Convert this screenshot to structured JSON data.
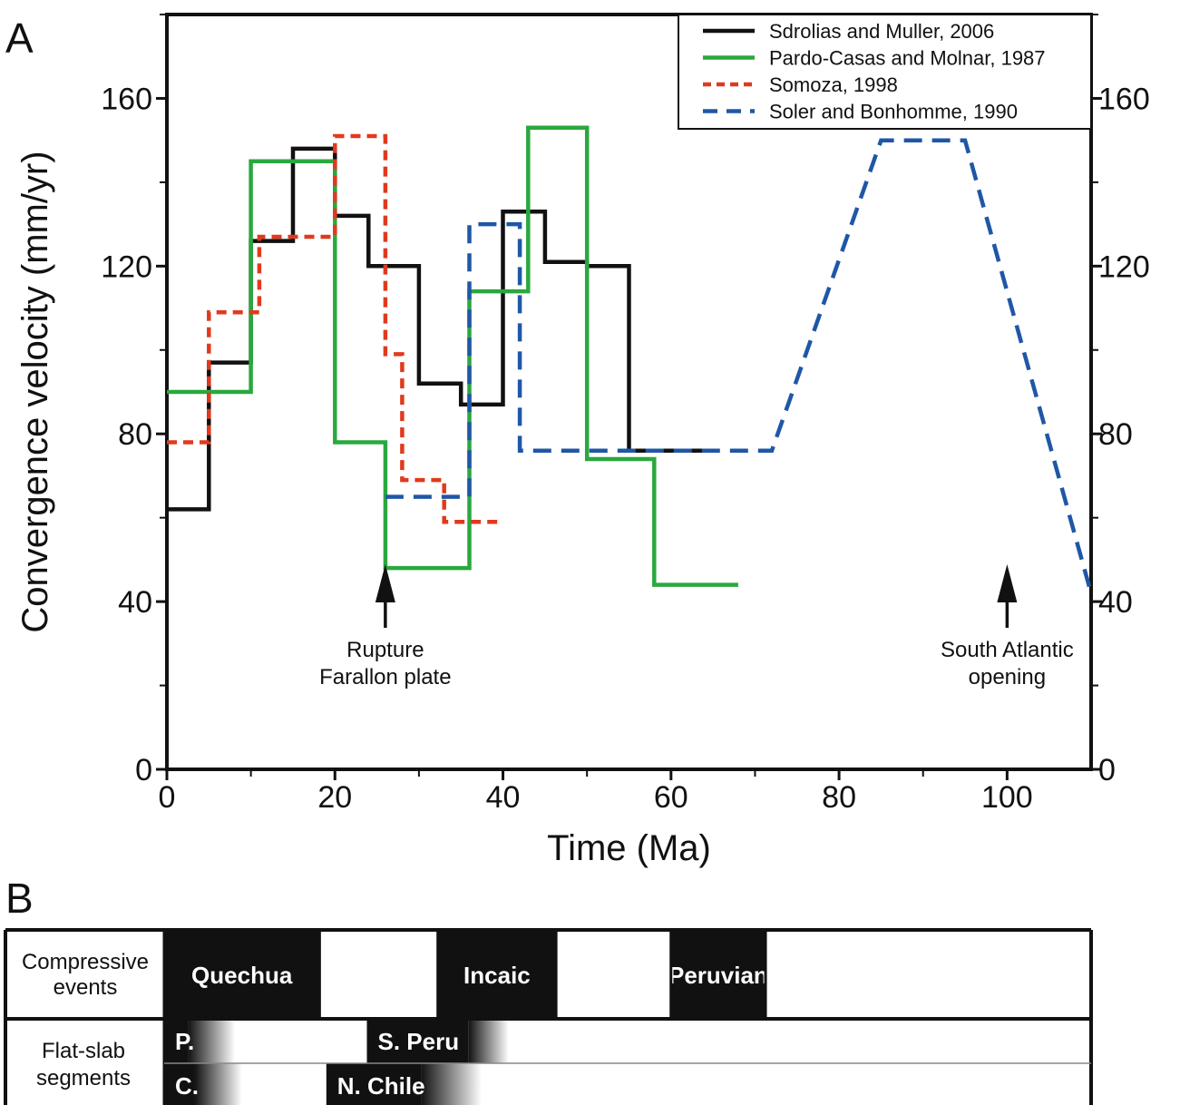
{
  "panels": {
    "a": "A",
    "b": "B"
  },
  "chart_data": {
    "type": "line",
    "title": "",
    "xlabel": "Time (Ma)",
    "ylabel": "Convergence velocity (mm/yr)",
    "xlim": [
      0,
      110
    ],
    "ylim": [
      0,
      180
    ],
    "x_ticks": [
      0,
      20,
      40,
      60,
      80,
      100
    ],
    "y_ticks": [
      0,
      40,
      80,
      120,
      160
    ],
    "right_axis_ticks": [
      0,
      40,
      80,
      120,
      160
    ],
    "grid": false,
    "legend_position": "top-right",
    "series": [
      {
        "name": "Sdrolias and Muller, 2006",
        "color": "#111111",
        "style": "solid",
        "points": [
          [
            0,
            62
          ],
          [
            5,
            62
          ],
          [
            5,
            97
          ],
          [
            10,
            97
          ],
          [
            10,
            126
          ],
          [
            15,
            126
          ],
          [
            15,
            148
          ],
          [
            20,
            148
          ],
          [
            20,
            132
          ],
          [
            24,
            132
          ],
          [
            24,
            120
          ],
          [
            30,
            120
          ],
          [
            30,
            92
          ],
          [
            35,
            92
          ],
          [
            35,
            87
          ],
          [
            40,
            87
          ],
          [
            40,
            133
          ],
          [
            45,
            133
          ],
          [
            45,
            121
          ],
          [
            50,
            121
          ],
          [
            50,
            120
          ],
          [
            55,
            120
          ],
          [
            55,
            76
          ],
          [
            64,
            76
          ]
        ]
      },
      {
        "name": "Pardo-Casas and Molnar, 1987",
        "color": "#2aa83e",
        "style": "solid",
        "points": [
          [
            0,
            90
          ],
          [
            10,
            90
          ],
          [
            10,
            145
          ],
          [
            20,
            145
          ],
          [
            20,
            78
          ],
          [
            26,
            78
          ],
          [
            26,
            48
          ],
          [
            36,
            48
          ],
          [
            36,
            114
          ],
          [
            43,
            114
          ],
          [
            43,
            153
          ],
          [
            50,
            153
          ],
          [
            50,
            74
          ],
          [
            58,
            74
          ],
          [
            58,
            44
          ],
          [
            68,
            44
          ]
        ]
      },
      {
        "name": "Somoza, 1998",
        "color": "#e03a1e",
        "style": "dotted",
        "points": [
          [
            0,
            78
          ],
          [
            5,
            78
          ],
          [
            5,
            109
          ],
          [
            11,
            109
          ],
          [
            11,
            127
          ],
          [
            20,
            127
          ],
          [
            20,
            151
          ],
          [
            26,
            151
          ],
          [
            26,
            99
          ],
          [
            28,
            99
          ],
          [
            28,
            69
          ],
          [
            33,
            69
          ],
          [
            33,
            59
          ],
          [
            40,
            59
          ]
        ]
      },
      {
        "name": "Soler and Bonhomme, 1990",
        "color": "#1f57a6",
        "style": "dashed",
        "points": [
          [
            26,
            65
          ],
          [
            36,
            65
          ],
          [
            36,
            130
          ],
          [
            42,
            130
          ],
          [
            42,
            76
          ],
          [
            72,
            76
          ],
          [
            85,
            150
          ],
          [
            95,
            150
          ],
          [
            110,
            42
          ]
        ]
      }
    ],
    "annotations": [
      {
        "x": 26,
        "lines": [
          "Rupture",
          "Farallon plate"
        ]
      },
      {
        "x": 100,
        "lines": [
          "South Atlantic",
          "opening"
        ]
      }
    ]
  },
  "table": {
    "rows": [
      {
        "label_lines": [
          "Compressive",
          "events"
        ],
        "bands": [
          {
            "start": 0,
            "end": 23,
            "label": "Quechua"
          },
          {
            "start": 40.5,
            "end": 58,
            "label": "Incaic"
          },
          {
            "start": 75,
            "end": 89,
            "label": "Peruvian"
          }
        ]
      },
      {
        "label_lines": [
          "Flat-slab",
          "segments"
        ],
        "subrows": [
          [
            {
              "start": 0,
              "end": 3.5,
              "fade_to": 10.5,
              "label": "P."
            },
            {
              "start": 30,
              "end": 45,
              "fade_to": 51,
              "label": "S. Peru"
            }
          ],
          [
            {
              "start": 0,
              "end": 4.5,
              "fade_to": 11.5,
              "label": "C."
            },
            {
              "start": 24,
              "end": 38,
              "fade_to": 47,
              "label": "N. Chile"
            }
          ]
        ]
      }
    ]
  }
}
